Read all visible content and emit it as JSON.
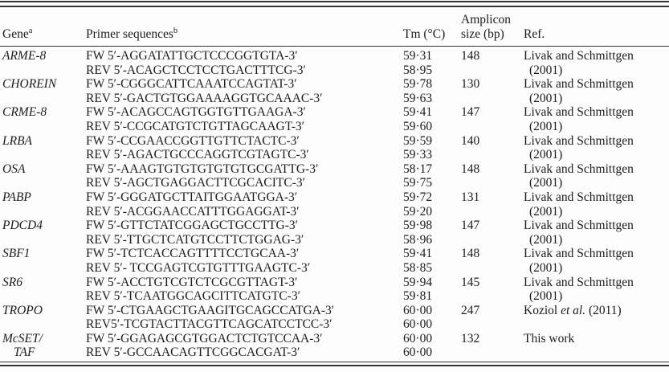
{
  "colors": {
    "text": "#1c1c1c",
    "rule": "#333333",
    "background": "#fdfdfd"
  },
  "table": {
    "headers": {
      "gene": "Gene",
      "gene_sup": "a",
      "primer": "Primer sequences",
      "primer_sup": "b",
      "tm": "Tm (°C)",
      "amplicon_line1": "Amplicon",
      "amplicon_line2": "size (bp)",
      "ref": "Ref."
    },
    "rows": [
      {
        "gene_line1": "ARME-8",
        "gene_line2": "",
        "fw": "FW 5′-AGGATATTGCTCCCGGTGTA-3′",
        "rev": "REV 5′-ACAGCTCCTCCTGACTTTCG-3′",
        "tm_fw": "59·31",
        "tm_rev": "58·95",
        "amplicon": "148",
        "ref_pre": "Livak and Schmittgen",
        "ref_italic": "",
        "ref_post": "",
        "ref_line2": "(2001)"
      },
      {
        "gene_line1": "CHOREIN",
        "gene_line2": "",
        "fw": "FW 5′-CGGGCATTCAAATCCAGTAT-3′",
        "rev": "REV 5′-GACTGTGGAAAAGGTGCAAAC-3′",
        "tm_fw": "59·78",
        "tm_rev": "59·63",
        "amplicon": "130",
        "ref_pre": "Livak and Schmittgen",
        "ref_italic": "",
        "ref_post": "",
        "ref_line2": "(2001)"
      },
      {
        "gene_line1": "CRME-8",
        "gene_line2": "",
        "fw": "FW 5′-ACAGCCAGTGGTGTTGAAGA-3′",
        "rev": "REV 5′-CCGCATGTCTGTTAGCAAGT-3′",
        "tm_fw": "59·41",
        "tm_rev": "59·60",
        "amplicon": "147",
        "ref_pre": "Livak and Schmittgen",
        "ref_italic": "",
        "ref_post": "",
        "ref_line2": "(2001)"
      },
      {
        "gene_line1": "LRBA",
        "gene_line2": "",
        "fw": "FW 5′-CCGAACCGGTTGTTCTACTC-3′",
        "rev": "REV 5′-AGACTGCCCAGGTCGTAGTC-3′",
        "tm_fw": "59·59",
        "tm_rev": "59·33",
        "amplicon": "140",
        "ref_pre": "Livak and Schmittgen",
        "ref_italic": "",
        "ref_post": "",
        "ref_line2": "(2001)"
      },
      {
        "gene_line1": "OSA",
        "gene_line2": "",
        "fw": "FW 5′-AAAGTGTGTGTGTGTGCGATTG-3′",
        "rev": "REV 5′-AGCTGAGGACTTCGCACITC-3′",
        "tm_fw": "58·17",
        "tm_rev": "59·75",
        "amplicon": "148",
        "ref_pre": "Livak and Schmittgen",
        "ref_italic": "",
        "ref_post": "",
        "ref_line2": "(2001)"
      },
      {
        "gene_line1": "PABP",
        "gene_line2": "",
        "fw": "FW 5′-GGGATGCTTAITGGAATGGA-3′",
        "rev": "REV 5′-ACGGAACCATTTGGAGGAT-3′",
        "tm_fw": "59·72",
        "tm_rev": "59·20",
        "amplicon": "131",
        "ref_pre": "Livak and Schmittgen",
        "ref_italic": "",
        "ref_post": "",
        "ref_line2": "(2001)"
      },
      {
        "gene_line1": "PDCD4",
        "gene_line2": "",
        "fw": "FW 5′-GTTCTATCGGAGCTGCCTTG-3′",
        "rev": "REV 5′-TTGCTCATGTCCTTCTGGAG-3′",
        "tm_fw": "59·98",
        "tm_rev": "58·96",
        "amplicon": "147",
        "ref_pre": "Livak and Schmittgen",
        "ref_italic": "",
        "ref_post": "",
        "ref_line2": "(2001)"
      },
      {
        "gene_line1": "SBF1",
        "gene_line2": "",
        "fw": "FW 5′-TCTCACCAGTTTTCCTGCAA-3′",
        "rev": "REV 5′- TCCGAGTCGTGTTTGAAGTC-3′",
        "tm_fw": "59·41",
        "tm_rev": "58·85",
        "amplicon": "148",
        "ref_pre": "Livak and Schmittgen",
        "ref_italic": "",
        "ref_post": "",
        "ref_line2": "(2001)"
      },
      {
        "gene_line1": "SR6",
        "gene_line2": "",
        "fw": "FW 5′-ACCTGTCGTCTCGCGTTAGT-3′",
        "rev": "REV 5′-TCAATGGCAGCITTCATGTC-3′",
        "tm_fw": "59·94",
        "tm_rev": "59·81",
        "amplicon": "145",
        "ref_pre": "Livak and Schmittgen",
        "ref_italic": "",
        "ref_post": "",
        "ref_line2": "(2001)"
      },
      {
        "gene_line1": "TROPO",
        "gene_line2": "",
        "fw": "FW 5′-CTGAAGCTGAAGITGCAGCCATGA-3′",
        "rev": "REV5′-TCGTACTTACGTTCAGCATCCTCC-3′",
        "tm_fw": "60·00",
        "tm_rev": "60·00",
        "amplicon": "247",
        "ref_pre": "Koziol ",
        "ref_italic": "et al.",
        "ref_post": " (2011)",
        "ref_line2": ""
      },
      {
        "gene_line1": "McSET/",
        "gene_line2": "TAF",
        "fw": "FW 5′-GGAGAGCGTGGACTCTGTCCAA-3′",
        "rev": "REV 5′-GCCAACAGTTCGGCACGAT-3′",
        "tm_fw": "60·00",
        "tm_rev": "60·00",
        "amplicon": "132",
        "ref_pre": "This work",
        "ref_italic": "",
        "ref_post": "",
        "ref_line2": ""
      }
    ]
  }
}
